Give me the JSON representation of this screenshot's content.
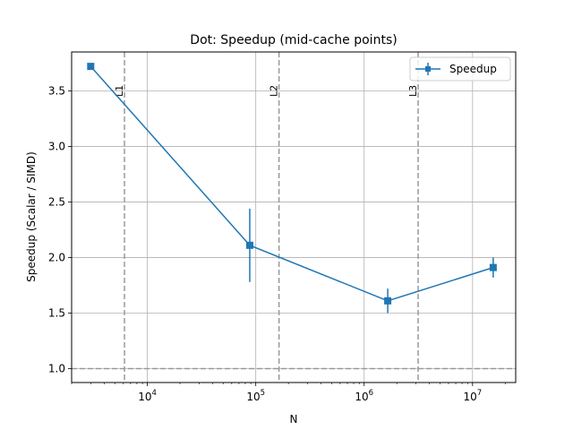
{
  "chart_data": {
    "type": "line",
    "title": "Dot: Speedup (mid-cache points)",
    "xlabel": "N",
    "ylabel": "Speedup (Scalar / SIMD)",
    "xscale": "log",
    "xlim": [
      2000,
      25000000
    ],
    "ylim": [
      0.875,
      3.85
    ],
    "grid": true,
    "x_tick_labels": [
      {
        "exp": 4,
        "label": "10",
        "sup": "4"
      },
      {
        "exp": 5,
        "label": "10",
        "sup": "5"
      },
      {
        "exp": 6,
        "label": "10",
        "sup": "6"
      },
      {
        "exp": 7,
        "label": "10",
        "sup": "7"
      }
    ],
    "y_ticks": [
      1.0,
      1.5,
      2.0,
      2.5,
      3.0,
      3.5
    ],
    "y_tick_labels": [
      "1.0",
      "1.5",
      "2.0",
      "2.5",
      "3.0",
      "3.5"
    ],
    "series": [
      {
        "name": "Speedup",
        "color": "#1f77b4",
        "marker": "square",
        "x": [
          3000,
          88000,
          1650000,
          15500000
        ],
        "y": [
          3.72,
          2.11,
          1.61,
          1.91
        ],
        "yerr": [
          0.0,
          0.33,
          0.11,
          0.09
        ]
      }
    ],
    "reference_lines": [
      {
        "orientation": "vertical",
        "x": 6144,
        "label": "L1",
        "color": "#999999"
      },
      {
        "orientation": "vertical",
        "x": 163840,
        "label": "L2",
        "color": "#999999"
      },
      {
        "orientation": "vertical",
        "x": 3145728,
        "label": "L3",
        "color": "#999999"
      },
      {
        "orientation": "horizontal",
        "y": 1.0,
        "label": "",
        "color": "#999999"
      }
    ],
    "legend": {
      "position": "top-right",
      "entries": [
        "Speedup"
      ]
    }
  }
}
